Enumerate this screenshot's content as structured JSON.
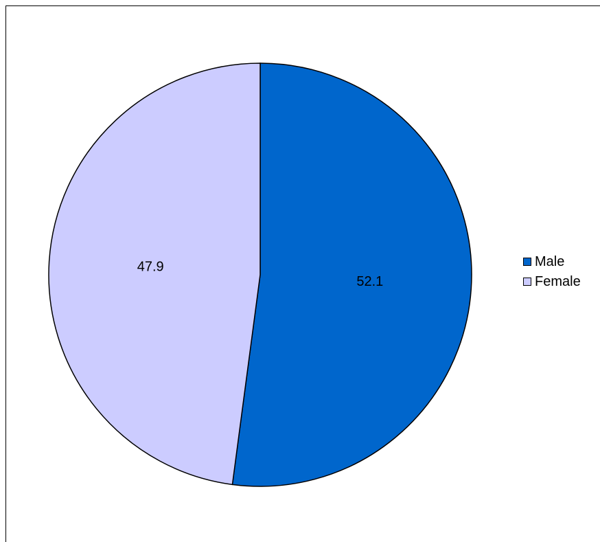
{
  "chart_data": {
    "type": "pie",
    "title": "",
    "slices": [
      {
        "label": "Male",
        "value": 52.1,
        "color": "#0066CC"
      },
      {
        "label": "Female",
        "value": 47.9,
        "color": "#CCCCFF"
      }
    ],
    "start_angle_deg": 0,
    "direction": "clockwise",
    "data_labels": [
      "52.1",
      "47.9"
    ],
    "legend": {
      "position": "right",
      "entries": [
        {
          "label": "Male",
          "color": "#0066CC"
        },
        {
          "label": "Female",
          "color": "#CCCCFF"
        }
      ]
    },
    "slice_border_color": "#000000"
  }
}
